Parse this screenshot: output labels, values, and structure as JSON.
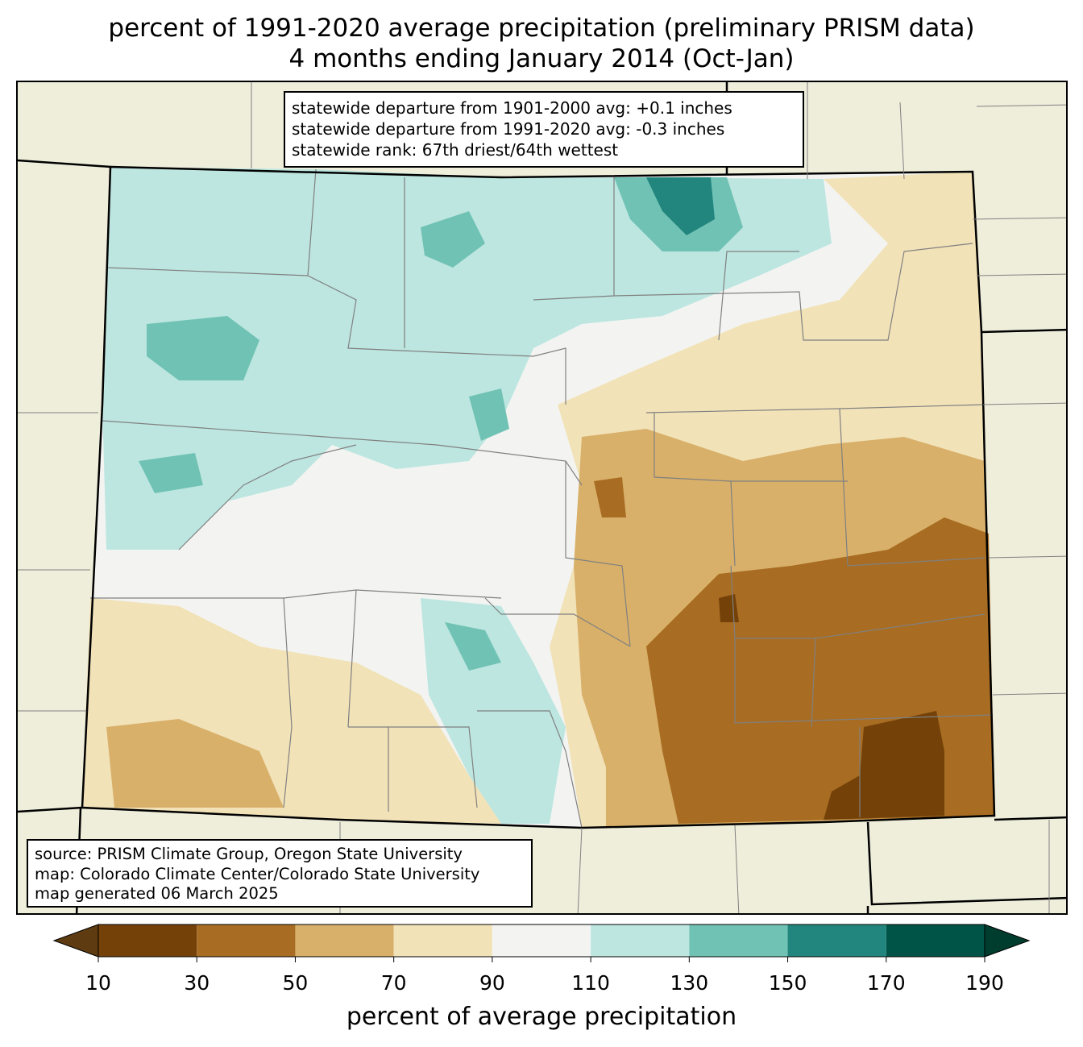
{
  "title": {
    "line1": "percent of 1991-2020 average precipitation (preliminary PRISM data)",
    "line2": "4 months ending January 2014 (Oct-Jan)"
  },
  "stats_box": {
    "line1": "statewide departure from 1901-2000 avg: +0.1 inches",
    "line2": "statewide departure from 1991-2020 avg: -0.3 inches",
    "line3": "statewide rank: 67th driest/64th wettest"
  },
  "source_box": {
    "line1": "source: PRISM Climate Group, Oregon State University",
    "line2": "map: Colorado Climate Center/Colorado State University",
    "line3": "map generated 06 March 2025"
  },
  "colorbar": {
    "label": "percent of average precipitation",
    "ticks": [
      "10",
      "30",
      "50",
      "70",
      "90",
      "110",
      "130",
      "150",
      "170",
      "190"
    ],
    "colors": [
      "#5e3b10",
      "#744209",
      "#a86c22",
      "#d8b06a",
      "#f2e2b8",
      "#f3f4f2",
      "#bde6e0",
      "#70c2b4",
      "#22867e",
      "#005347",
      "#003d2f"
    ]
  },
  "map_colors": {
    "background_states": "#efeedb",
    "state_border": "#000000",
    "county_border": "#808080"
  }
}
